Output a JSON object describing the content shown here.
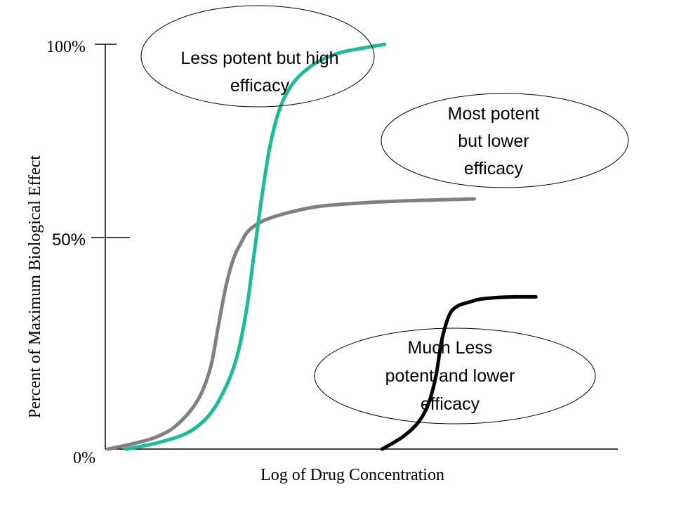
{
  "chart_data": {
    "type": "line",
    "title": "",
    "xlabel": "Log of Drug Concentration",
    "ylabel": "Percent of Maximum Biological Effect",
    "ylim": [
      0,
      100
    ],
    "y_ticks": [
      {
        "value": 0,
        "label": "0%"
      },
      {
        "value": 50,
        "label": "50%"
      },
      {
        "value": 100,
        "label": "100%"
      }
    ],
    "grid": false,
    "series": [
      {
        "key": "gray",
        "color": "#808080",
        "x": [
          0.5,
          5,
          10,
          14,
          18,
          20.5,
          22,
          23.5,
          25,
          26.5,
          28,
          31,
          36,
          42,
          50,
          58,
          66,
          72
        ],
        "y": [
          0,
          1.2,
          3,
          6,
          12,
          20,
          30,
          40,
          47,
          51,
          54,
          56.5,
          58.5,
          60,
          60.8,
          61.3,
          61.6,
          61.8
        ]
      },
      {
        "key": "teal",
        "color": "#1abc9c",
        "x": [
          4,
          10,
          16,
          20,
          23,
          25.5,
          27.5,
          29,
          30.5,
          32,
          33.5,
          35,
          37,
          39.5,
          42,
          46,
          50,
          54.5
        ],
        "y": [
          0,
          1.5,
          4,
          8,
          14,
          22,
          34,
          48,
          62,
          74,
          82,
          87,
          91,
          94,
          96,
          98,
          99,
          100
        ]
      },
      {
        "key": "black",
        "color": "#000000",
        "x": [
          54,
          58,
          61,
          63,
          64.5,
          65.5,
          66.5,
          67.5,
          69,
          71,
          73,
          76,
          80,
          84
        ],
        "y": [
          0,
          3,
          6.5,
          11,
          18,
          26,
          31,
          34,
          35.5,
          36.3,
          37,
          37.4,
          37.6,
          37.6
        ]
      }
    ],
    "annotations": [
      {
        "key": "teal",
        "lines": [
          "Less potent but high",
          "efficacy"
        ]
      },
      {
        "key": "gray",
        "lines": [
          "Most potent",
          "but lower",
          "efficacy"
        ]
      },
      {
        "key": "black",
        "lines": [
          "Much Less",
          "potent and lower",
          "efficacy"
        ]
      }
    ]
  }
}
